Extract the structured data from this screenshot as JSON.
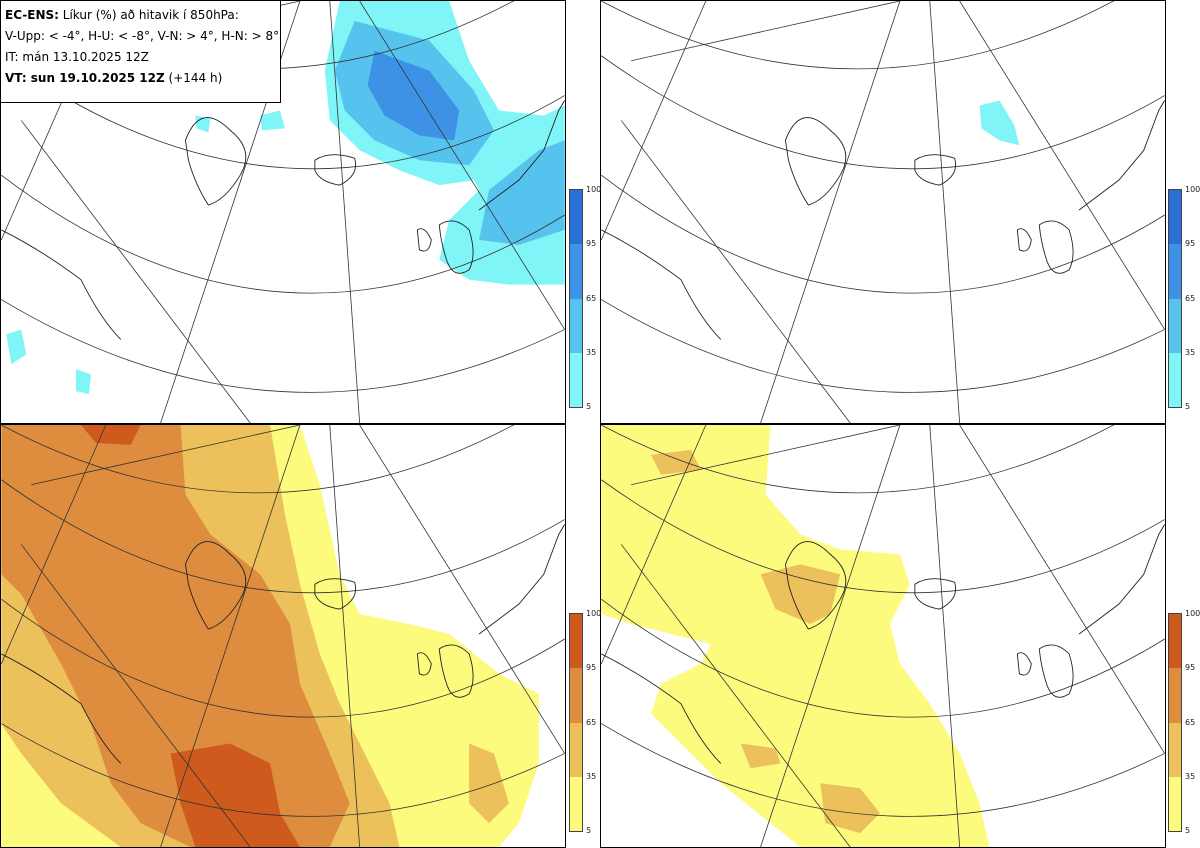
{
  "header": {
    "line1_bold": "EC-ENS:",
    "line1_rest": "Líkur (%) að hitavik í 850hPa:",
    "line2": "V-Upp: < -4°, H-U: < -8°, V-N: > 4°, H-N: > 8°",
    "line3": "IT: mán 13.10.2025 12Z",
    "line4_bold": "VT: sun 19.10.2025 12Z",
    "line4_rest": "(+144 h)"
  },
  "colorbars": {
    "cold": {
      "labels": [
        "100",
        "95",
        "65",
        "35",
        "5"
      ],
      "colors": [
        "#2a6fd6",
        "#3d92e6",
        "#55c3ee",
        "#7ff5f7"
      ]
    },
    "warm": {
      "labels": [
        "100",
        "95",
        "65",
        "35",
        "5"
      ],
      "colors": [
        "#cf5a1e",
        "#de8c3e",
        "#ecc05a",
        "#fdfb7e"
      ]
    }
  },
  "panels": [
    {
      "id": "V-Upp",
      "palette": "cold"
    },
    {
      "id": "H-U",
      "palette": "cold"
    },
    {
      "id": "V-N",
      "palette": "warm"
    },
    {
      "id": "H-N",
      "palette": "warm"
    }
  ]
}
